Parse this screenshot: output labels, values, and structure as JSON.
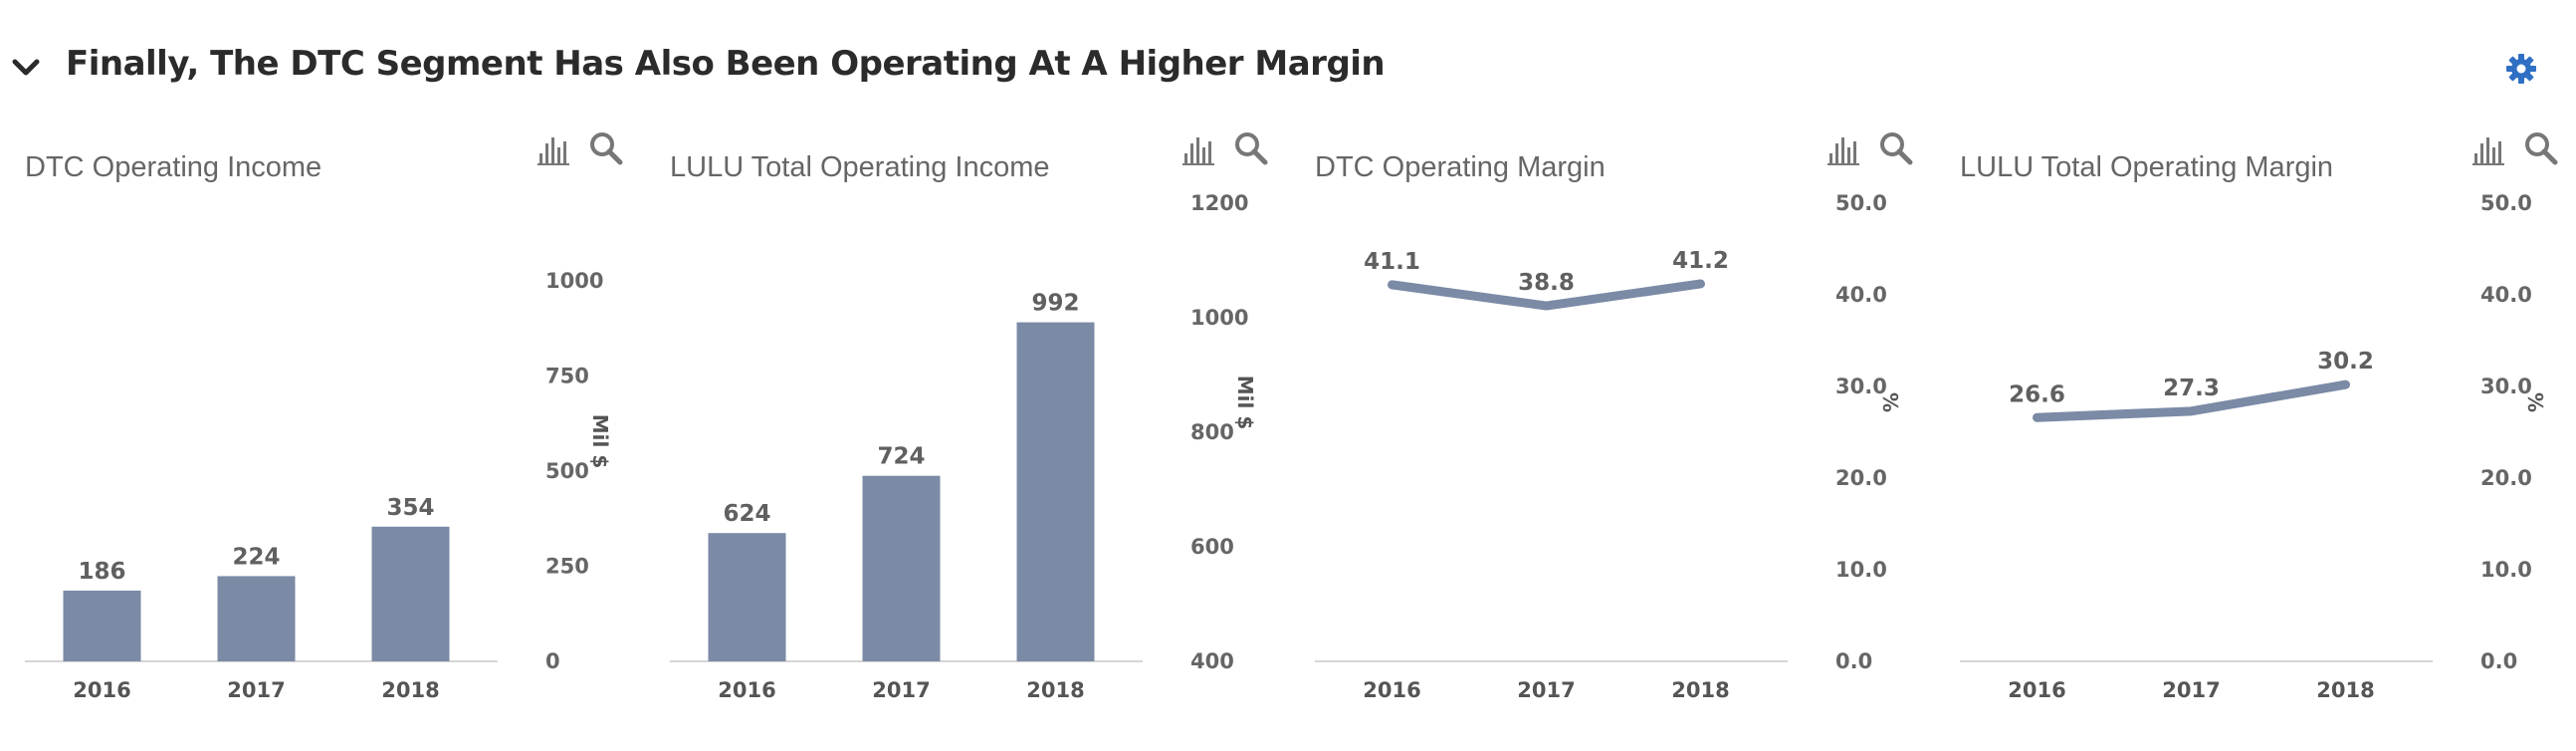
{
  "header": {
    "title": "Finally, The DTC Segment Has Also Been Operating At A Higher Margin",
    "chevron_icon": "chevron-down-icon",
    "settings_icon": "gear-icon",
    "accent_color": "#2f6fc4"
  },
  "colors": {
    "series": "#7b8aa5",
    "axis": "#d6d6d6",
    "text": "#666666"
  },
  "chart_data": [
    {
      "type": "bar",
      "title": "DTC Operating Income",
      "categories": [
        "2016",
        "2017",
        "2018"
      ],
      "values": [
        186,
        224,
        354
      ],
      "value_labels": [
        "186",
        "224",
        "354"
      ],
      "ylabel": "Mil $",
      "ylim": [
        0,
        1000
      ],
      "yticks": [
        0,
        250,
        500,
        750,
        1000
      ],
      "ytick_labels": [
        "0",
        "250",
        "500",
        "750",
        "1000"
      ],
      "axis_side": "right",
      "grid": false
    },
    {
      "type": "bar",
      "title": "LULU Total Operating Income",
      "categories": [
        "2016",
        "2017",
        "2018"
      ],
      "values": [
        624,
        724,
        992
      ],
      "value_labels": [
        "624",
        "724",
        "992"
      ],
      "ylabel": "Mil $",
      "ylim": [
        400,
        1200
      ],
      "yticks": [
        400,
        600,
        800,
        1000,
        1200
      ],
      "ytick_labels": [
        "400",
        "600",
        "800",
        "1000",
        "1200"
      ],
      "axis_side": "right",
      "grid": false
    },
    {
      "type": "line",
      "title": "DTC Operating Margin",
      "categories": [
        "2016",
        "2017",
        "2018"
      ],
      "values": [
        41.1,
        38.8,
        41.2
      ],
      "value_labels": [
        "41.1",
        "38.8",
        "41.2"
      ],
      "ylabel": "%",
      "ylim": [
        0,
        50
      ],
      "yticks": [
        0,
        10,
        20,
        30,
        40,
        50
      ],
      "ytick_labels": [
        "0.0",
        "10.0",
        "20.0",
        "30.0",
        "40.0",
        "50.0"
      ],
      "axis_side": "right",
      "grid": false
    },
    {
      "type": "line",
      "title": "LULU Total Operating Margin",
      "categories": [
        "2016",
        "2017",
        "2018"
      ],
      "values": [
        26.6,
        27.3,
        30.2
      ],
      "value_labels": [
        "26.6",
        "27.3",
        "30.2"
      ],
      "ylabel": "%",
      "ylim": [
        0,
        50
      ],
      "yticks": [
        0,
        10,
        20,
        30,
        40,
        50
      ],
      "ytick_labels": [
        "0.0",
        "10.0",
        "20.0",
        "30.0",
        "40.0",
        "50.0"
      ],
      "axis_side": "right",
      "grid": false
    }
  ],
  "panel_tools": {
    "chart_type_icon": "bar-chart-icon",
    "zoom_icon": "search-icon"
  }
}
